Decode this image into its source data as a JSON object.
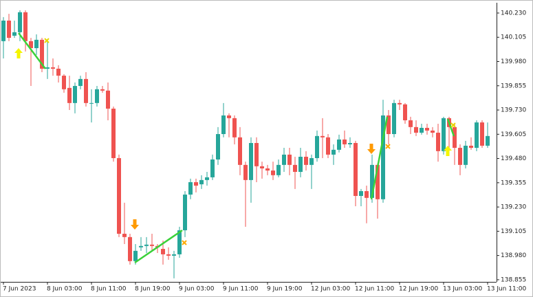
{
  "chart_data": {
    "type": "candlestick",
    "categories": [
      "7 Jun 2023",
      null,
      null,
      null,
      null,
      null,
      null,
      null,
      "8 Jun 03:00",
      null,
      null,
      null,
      null,
      null,
      null,
      null,
      "8 Jun 11:00",
      null,
      null,
      null,
      null,
      null,
      null,
      null,
      "8 Jun 19:00",
      null,
      null,
      null,
      null,
      null,
      null,
      null,
      "9 Jun 03:00",
      null,
      null,
      null,
      null,
      null,
      null,
      null,
      "9 Jun 11:00",
      null,
      null,
      null,
      null,
      null,
      null,
      null,
      "9 Jun 19:00",
      null,
      null,
      null,
      null,
      null,
      null,
      null,
      "12 Jun 03:00",
      null,
      null,
      null,
      null,
      null,
      null,
      null,
      "12 Jun 11:00",
      null,
      null,
      null,
      null,
      null,
      null,
      null,
      "12 Jun 19:00",
      null,
      null,
      null,
      null,
      null,
      null,
      null,
      "13 Jun 03:00",
      null,
      null,
      null,
      null,
      null,
      null,
      null,
      "13 Jun 11:00"
    ],
    "open": [
      140.085,
      140.191,
      140.113,
      140.131,
      140.234,
      140.085,
      140.049,
      140.092,
      139.943,
      139.95,
      139.943,
      139.907,
      139.844,
      139.766,
      139.854,
      139.89,
      139.766,
      139.766,
      139.837,
      139.83,
      139.737,
      139.482,
      139.092,
      139.075,
      138.951,
      139.022,
      139.029,
      139.036,
      139.029,
      139.014,
      138.986,
      138.979,
      138.986,
      139.11,
      139.294,
      139.358,
      139.347,
      139.369,
      139.383,
      139.475,
      139.606,
      139.702,
      139.688,
      139.589,
      139.447,
      139.369,
      139.56,
      139.44,
      139.429,
      139.418,
      139.394,
      139.447,
      139.5,
      139.447,
      139.411,
      139.489,
      139.447,
      139.482,
      139.596,
      139.589,
      139.5,
      139.525,
      139.578,
      139.553,
      139.56,
      139.287,
      139.312,
      139.277,
      139.447,
      139.27,
      139.702,
      139.606,
      139.766,
      139.759,
      139.677,
      139.642,
      139.613,
      139.638,
      139.624,
      139.613,
      139.518,
      139.688,
      139.642,
      139.535,
      139.447,
      139.546,
      139.535,
      139.666,
      139.546
    ],
    "high": [
      140.209,
      140.226,
      140.191,
      140.244,
      140.244,
      140.102,
      140.12,
      140.102,
      140.085,
      139.996,
      139.961,
      139.915,
      139.907,
      139.872,
      139.907,
      139.925,
      139.837,
      139.854,
      139.854,
      139.872,
      139.748,
      139.5,
      139.252,
      139.092,
      139.039,
      139.075,
      139.075,
      139.092,
      139.039,
      139.057,
      139.022,
      139.004,
      139.128,
      139.312,
      139.376,
      139.376,
      139.394,
      139.411,
      139.5,
      139.642,
      139.766,
      139.713,
      139.702,
      139.642,
      139.464,
      139.589,
      139.589,
      139.464,
      139.447,
      139.464,
      139.475,
      139.535,
      139.535,
      139.489,
      139.535,
      139.518,
      139.5,
      139.624,
      139.688,
      139.606,
      139.553,
      139.603,
      139.624,
      139.589,
      139.571,
      139.323,
      139.34,
      139.5,
      139.454,
      139.783,
      139.73,
      139.783,
      139.783,
      139.766,
      139.695,
      139.677,
      139.659,
      139.659,
      139.642,
      139.659,
      139.695,
      139.695,
      139.659,
      139.553,
      139.571,
      139.589,
      139.677,
      139.677,
      139.666
    ],
    "low": [
      139.996,
      140.085,
      140.102,
      140.085,
      140.032,
      139.854,
      140.014,
      139.925,
      139.89,
      139.907,
      139.872,
      139.819,
      139.73,
      139.713,
      139.837,
      139.748,
      139.666,
      139.748,
      139.819,
      139.677,
      139.464,
      139.075,
      139.039,
      138.933,
      138.933,
      139.004,
      138.993,
      139.004,
      138.993,
      138.933,
      138.958,
      138.862,
      138.968,
      139.075,
      139.27,
      139.305,
      139.323,
      139.34,
      139.369,
      139.447,
      139.589,
      139.589,
      139.553,
      139.394,
      139.128,
      139.252,
      139.358,
      139.376,
      139.394,
      139.369,
      139.383,
      139.411,
      139.394,
      139.323,
      139.383,
      139.418,
      139.323,
      139.464,
      139.482,
      139.482,
      139.447,
      139.511,
      139.535,
      139.535,
      139.234,
      139.234,
      139.146,
      139.252,
      139.17,
      139.252,
      139.553,
      139.589,
      139.73,
      139.659,
      139.606,
      139.596,
      139.603,
      139.603,
      139.589,
      139.464,
      139.5,
      139.5,
      139.447,
      139.394,
      139.429,
      139.525,
      139.518,
      139.535,
      139.535
    ],
    "close": [
      140.191,
      140.102,
      140.131,
      140.234,
      140.085,
      140.049,
      140.092,
      139.943,
      139.95,
      139.943,
      139.907,
      139.837,
      139.766,
      139.854,
      139.89,
      139.766,
      139.766,
      139.837,
      139.83,
      139.737,
      139.482,
      139.092,
      139.075,
      138.951,
      139.004,
      139.029,
      139.036,
      139.029,
      139.022,
      138.986,
      138.979,
      138.986,
      139.11,
      139.294,
      139.358,
      139.34,
      139.369,
      139.383,
      139.475,
      139.606,
      139.702,
      139.688,
      139.589,
      139.447,
      139.369,
      139.56,
      139.44,
      139.429,
      139.418,
      139.394,
      139.447,
      139.5,
      139.447,
      139.411,
      139.489,
      139.447,
      139.482,
      139.596,
      139.589,
      139.5,
      139.525,
      139.578,
      139.553,
      139.56,
      139.287,
      139.312,
      139.277,
      139.447,
      139.27,
      139.702,
      139.606,
      139.766,
      139.759,
      139.677,
      139.642,
      139.613,
      139.638,
      139.624,
      139.613,
      139.518,
      139.688,
      139.642,
      139.535,
      139.447,
      139.546,
      139.535,
      139.666,
      139.546,
      139.596
    ],
    "up_color": "#26a69a",
    "down_color": "#ef5350",
    "ylim": [
      138.844,
      140.283
    ],
    "yticks": [
      {
        "value": 140.23,
        "label": "140.230"
      },
      {
        "value": 140.105,
        "label": "140.105"
      },
      {
        "value": 139.98,
        "label": "139.980"
      },
      {
        "value": 139.855,
        "label": "139.855"
      },
      {
        "value": 139.73,
        "label": "139.730"
      },
      {
        "value": 139.605,
        "label": "139.605"
      },
      {
        "value": 139.48,
        "label": "139.480"
      },
      {
        "value": 139.355,
        "label": "139.355"
      },
      {
        "value": 139.23,
        "label": "139.230"
      },
      {
        "value": 139.105,
        "label": "139.105"
      },
      {
        "value": 138.98,
        "label": "138.980"
      },
      {
        "value": 138.855,
        "label": "138.855"
      }
    ]
  }
}
